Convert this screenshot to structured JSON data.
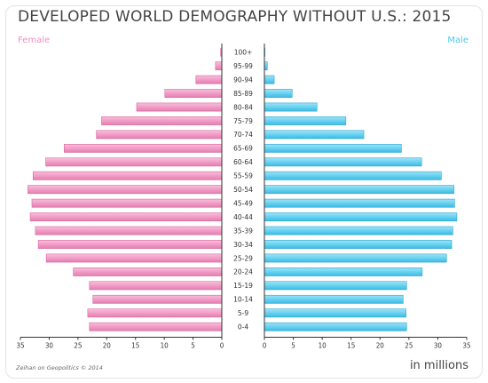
{
  "chart_data": {
    "type": "bar",
    "title": "DEVELOPED WORLD DEMOGRAPHY WITHOUT U.S.: 2015",
    "subtitle": "",
    "left_label": "Female",
    "right_label": "Male",
    "unit_label": "in millions",
    "credit": "Zeihan on Geopolitics © 2014",
    "categories": [
      "100+",
      "95-99",
      "90-94",
      "85-89",
      "80-84",
      "75-79",
      "70-74",
      "65-69",
      "60-64",
      "55-59",
      "50-54",
      "45-49",
      "40-44",
      "35-39",
      "30-34",
      "25-29",
      "20-24",
      "15-19",
      "10-14",
      "5-9",
      "0-4"
    ],
    "series": [
      {
        "name": "Female",
        "values": [
          0.2,
          1.1,
          4.5,
          9.9,
          14.8,
          20.9,
          21.8,
          27.4,
          30.6,
          32.8,
          33.7,
          33.0,
          33.3,
          32.4,
          31.9,
          30.5,
          25.8,
          23.0,
          22.4,
          23.3,
          23.0
        ]
      },
      {
        "name": "Male",
        "values": [
          0.1,
          0.5,
          1.7,
          4.8,
          9.1,
          14.1,
          17.2,
          23.7,
          27.2,
          30.6,
          32.8,
          32.9,
          33.3,
          32.6,
          32.4,
          31.5,
          27.3,
          24.6,
          24.0,
          24.5,
          24.6
        ]
      }
    ],
    "x_ticks": [
      35,
      30,
      25,
      20,
      15,
      10,
      5,
      0
    ],
    "xlim": [
      0,
      35
    ],
    "grid": false,
    "colors": {
      "female": "#f29cc7",
      "female_dark": "#d7689f",
      "male": "#67d2f1",
      "male_dark": "#2fa6cf",
      "axis": "#333333"
    }
  }
}
